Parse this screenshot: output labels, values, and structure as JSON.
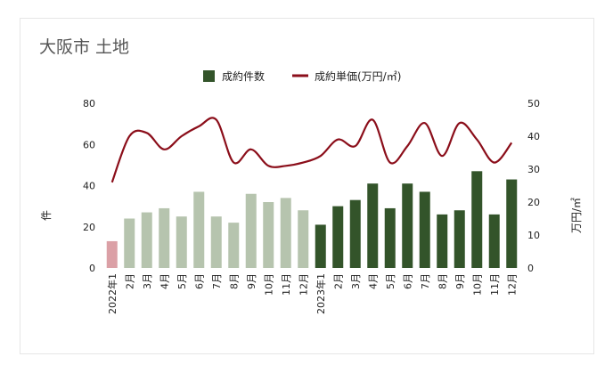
{
  "chart_data": {
    "type": "bar",
    "title": "大阪市 土地",
    "categories": [
      "2022年1",
      "2月",
      "3月",
      "4月",
      "5月",
      "6月",
      "7月",
      "8月",
      "9月",
      "10月",
      "11月",
      "12月",
      "2023年1",
      "2月",
      "3月",
      "4月",
      "5月",
      "6月",
      "7月",
      "8月",
      "9月",
      "10月",
      "11月",
      "12月"
    ],
    "series": [
      {
        "name": "成約件数",
        "type": "bar",
        "axis": "left",
        "values": [
          13,
          24,
          27,
          29,
          25,
          37,
          25,
          22,
          36,
          32,
          34,
          28,
          21,
          30,
          33,
          41,
          29,
          41,
          37,
          26,
          28,
          47,
          26,
          43
        ]
      },
      {
        "name": "成約単価(万円/㎡)",
        "type": "line",
        "axis": "right",
        "values": [
          26,
          40,
          41,
          36,
          40,
          43,
          45,
          32,
          36,
          31,
          31,
          32,
          34,
          39,
          37,
          45,
          32,
          37,
          44,
          34,
          44,
          39,
          32,
          38
        ]
      }
    ],
    "ylabel": "件",
    "y2label": "万円/㎡",
    "ylim": [
      0,
      80
    ],
    "y2lim": [
      0,
      50
    ],
    "yticks": [
      "0",
      "20",
      "40",
      "60",
      "80"
    ],
    "y2ticks": [
      "0",
      "10",
      "20",
      "30",
      "40",
      "50"
    ],
    "legend_position": "top",
    "colors": {
      "bar_current": "#33542a",
      "bar_prior": "#b6c4ae",
      "bar_first": "#dba0a6",
      "line": "#8b0e1a",
      "legend_bar": "#33542a"
    }
  }
}
